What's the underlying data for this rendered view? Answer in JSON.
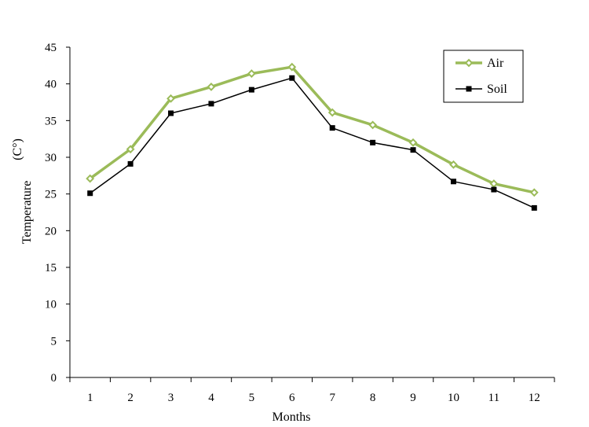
{
  "chart_data": {
    "type": "line",
    "title": "",
    "xlabel": "Months",
    "ylabel": "Temperature",
    "ylabel_unit": "(C°)",
    "categories": [
      "1",
      "2",
      "3",
      "4",
      "5",
      "6",
      "7",
      "8",
      "9",
      "10",
      "11",
      "12"
    ],
    "ylim": [
      0,
      45
    ],
    "yticks": [
      "0",
      "5",
      "10",
      "15",
      "20",
      "25",
      "30",
      "35",
      "40",
      "45"
    ],
    "grid": false,
    "legend_position": "top-right",
    "series": [
      {
        "name": "Air",
        "color": "#9bbb59",
        "marker": "diamond",
        "values": [
          27.1,
          31.1,
          38.0,
          39.6,
          41.4,
          42.3,
          36.1,
          34.4,
          32.0,
          29.0,
          26.4,
          25.2
        ]
      },
      {
        "name": "Soil",
        "color": "#000000",
        "marker": "square",
        "values": [
          25.1,
          29.1,
          36.0,
          37.3,
          39.2,
          40.8,
          34.0,
          32.0,
          31.0,
          26.7,
          25.6,
          23.1
        ]
      }
    ]
  }
}
